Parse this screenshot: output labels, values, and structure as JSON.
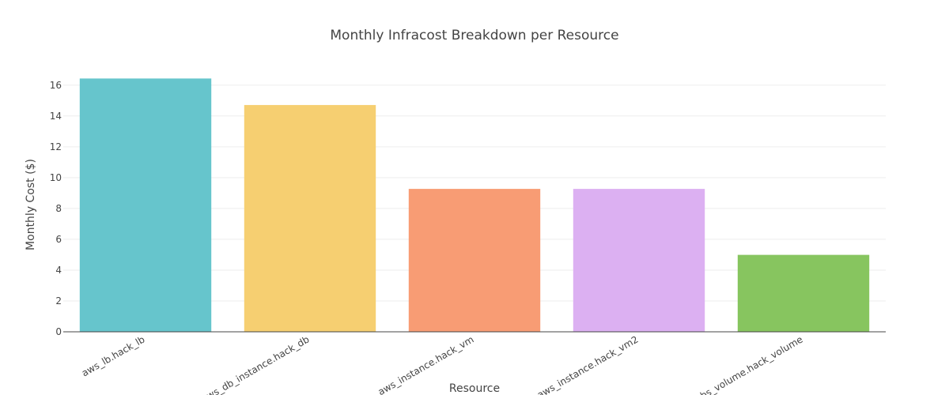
{
  "chart_data": {
    "type": "bar",
    "title": "Monthly Infracost Breakdown per Resource",
    "xlabel": "Resource",
    "ylabel": "Monthly Cost ($)",
    "categories": [
      "aws_lb.hack_lb",
      "aws_db_instance.hack_db",
      "aws_instance.hack_vm",
      "aws_instance.hack_vm2",
      "ebs_volume.hack_volume"
    ],
    "values": [
      16.43,
      14.71,
      9.27,
      9.27,
      4.99
    ],
    "colors": [
      "#66c5cc",
      "#f6cf71",
      "#f89c74",
      "#dcb0f2",
      "#87c55f"
    ],
    "ylim": [
      0,
      16.5
    ],
    "yticks": [
      0,
      2,
      4,
      6,
      8,
      10,
      12,
      14,
      16
    ],
    "ytick_labels": [
      "0",
      "2",
      "4",
      "6",
      "8",
      "10",
      "12",
      "14",
      "16"
    ],
    "grid": true,
    "legend": "none"
  }
}
